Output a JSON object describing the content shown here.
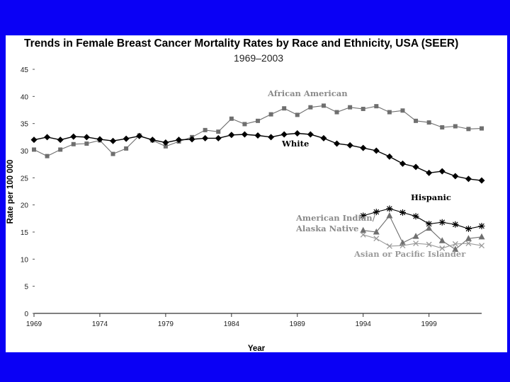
{
  "chart_data": {
    "type": "line",
    "title": "Trends in Female Breast Cancer Mortality Rates by Race and Ethnicity, USA (SEER)",
    "subtitle": "1969–2003",
    "xlabel": "Year",
    "ylabel": "Rate per 100 000",
    "xlim": [
      1969,
      2003
    ],
    "ylim": [
      0,
      45
    ],
    "xticks": [
      1969,
      1974,
      1979,
      1984,
      1989,
      1994,
      1999
    ],
    "yticks": [
      0,
      5,
      10,
      15,
      20,
      25,
      30,
      35,
      40,
      45
    ],
    "grid": false,
    "series": [
      {
        "name": "African American",
        "marker": "square",
        "color": "#6f6f6f",
        "x": [
          1969,
          1970,
          1971,
          1972,
          1973,
          1974,
          1975,
          1976,
          1977,
          1978,
          1979,
          1980,
          1981,
          1982,
          1983,
          1984,
          1985,
          1986,
          1987,
          1988,
          1989,
          1990,
          1991,
          1992,
          1993,
          1994,
          1995,
          1996,
          1997,
          1998,
          1999,
          2000,
          2001,
          2002,
          2003
        ],
        "values": [
          30.2,
          29.0,
          30.2,
          31.2,
          31.3,
          31.9,
          29.4,
          30.4,
          32.8,
          31.9,
          30.8,
          31.7,
          32.5,
          33.8,
          33.5,
          35.9,
          34.9,
          35.5,
          36.7,
          37.8,
          36.6,
          38.0,
          38.3,
          37.1,
          38.0,
          37.7,
          38.2,
          37.1,
          37.4,
          35.5,
          35.2,
          34.3,
          34.5,
          34.0,
          34.1
        ]
      },
      {
        "name": "White",
        "marker": "diamond",
        "color": "#000000",
        "x": [
          1969,
          1970,
          1971,
          1972,
          1973,
          1974,
          1975,
          1976,
          1977,
          1978,
          1979,
          1980,
          1981,
          1982,
          1983,
          1984,
          1985,
          1986,
          1987,
          1988,
          1989,
          1990,
          1991,
          1992,
          1993,
          1994,
          1995,
          1996,
          1997,
          1998,
          1999,
          2000,
          2001,
          2002,
          2003
        ],
        "values": [
          32.0,
          32.5,
          32.0,
          32.6,
          32.5,
          32.1,
          31.8,
          32.2,
          32.7,
          32.0,
          31.5,
          32.0,
          32.1,
          32.3,
          32.3,
          32.9,
          33.0,
          32.8,
          32.5,
          33.0,
          33.2,
          33.0,
          32.3,
          31.3,
          31.0,
          30.5,
          30.0,
          28.9,
          27.6,
          27.0,
          25.9,
          26.2,
          25.3,
          24.8,
          24.5
        ]
      },
      {
        "name": "Hispanic",
        "marker": "asterisk",
        "color": "#000000",
        "x": [
          1992,
          1993,
          1994,
          1995,
          1996,
          1997,
          1998,
          1999,
          2000,
          2001,
          2002,
          2003
        ],
        "values": [
          null,
          null,
          18.0,
          18.7,
          19.3,
          18.6,
          17.9,
          16.5,
          16.8,
          16.4,
          15.6,
          16.1
        ]
      },
      {
        "name": "American Indian/ Alaska Native",
        "marker": "triangle",
        "color": "#6f6f6f",
        "x": [
          1994,
          1995,
          1996,
          1997,
          1998,
          1999,
          2000,
          2001,
          2002,
          2003
        ],
        "values": [
          15.3,
          15.0,
          18.0,
          13.0,
          14.2,
          15.7,
          13.4,
          11.8,
          13.8,
          14.1
        ]
      },
      {
        "name": "Asian or Pacific Islander",
        "marker": "x",
        "color": "#9a9a9a",
        "x": [
          1994,
          1995,
          1996,
          1997,
          1998,
          1999,
          2000,
          2001,
          2002,
          2003
        ],
        "values": [
          14.5,
          13.8,
          12.4,
          12.5,
          12.9,
          12.7,
          12.0,
          12.8,
          12.9,
          12.5
        ]
      }
    ],
    "annotations": [
      {
        "text": "African American",
        "series": "African American"
      },
      {
        "text": "White",
        "series": "White"
      },
      {
        "text": "Hispanic",
        "series": "Hispanic"
      },
      {
        "text": "American Indian/",
        "series": "American Indian/ Alaska Native"
      },
      {
        "text": "Alaska Native",
        "series": "American Indian/ Alaska Native"
      },
      {
        "text": "Asian or Pacific Islander",
        "series": "Asian or Pacific Islander"
      }
    ]
  }
}
